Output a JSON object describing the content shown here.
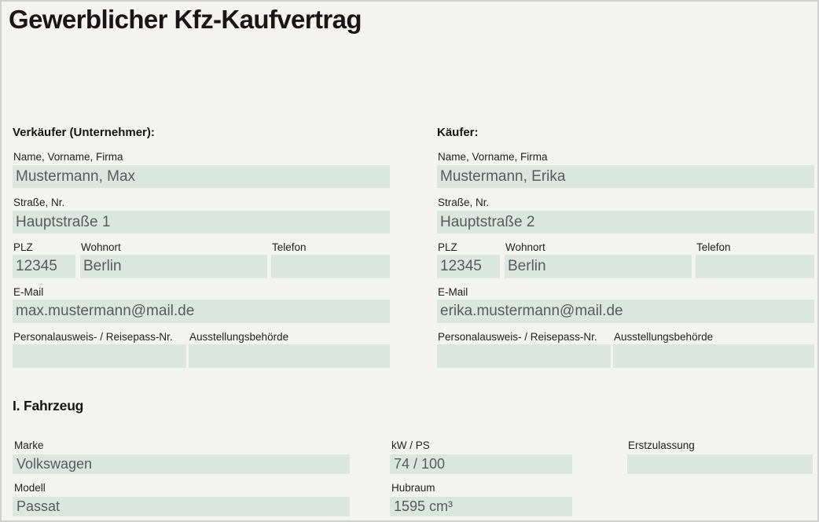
{
  "page": {
    "title": "Gewerblicher Kfz-Kaufvertrag",
    "colors": {
      "background": "#f3f3f1",
      "field_fill": "#dbe6e0",
      "label_text": "#222120",
      "value_text": "#595a5d",
      "border": "#cfd0cf"
    }
  },
  "parties": {
    "seller": {
      "heading": "Verkäufer (Unternehmer):",
      "name": {
        "label": "Name, Vorname, Firma",
        "value": "Mustermann, Max"
      },
      "street": {
        "label": "Straße, Nr.",
        "value": "Hauptstraße 1"
      },
      "plz": {
        "label": "PLZ",
        "value": "12345"
      },
      "city": {
        "label": "Wohnort",
        "value": "Berlin"
      },
      "phone": {
        "label": "Telefon",
        "value": ""
      },
      "email": {
        "label": "E-Mail",
        "value": "max.mustermann@mail.de"
      },
      "id_number": {
        "label": "Personalausweis- / Reisepass-Nr.",
        "value": ""
      },
      "authority": {
        "label": "Ausstellungsbehörde",
        "value": ""
      }
    },
    "buyer": {
      "heading": "Käufer:",
      "name": {
        "label": "Name, Vorname, Firma",
        "value": "Mustermann, Erika"
      },
      "street": {
        "label": "Straße, Nr.",
        "value": "Hauptstraße 2"
      },
      "plz": {
        "label": "PLZ",
        "value": "12345"
      },
      "city": {
        "label": "Wohnort",
        "value": "Berlin"
      },
      "phone": {
        "label": "Telefon",
        "value": ""
      },
      "email": {
        "label": "E-Mail",
        "value": "erika.mustermann@mail.de"
      },
      "id_number": {
        "label": "Personalausweis- / Reisepass-Nr.",
        "value": ""
      },
      "authority": {
        "label": "Ausstellungsbehörde",
        "value": ""
      }
    }
  },
  "vehicle": {
    "heading": "I. Fahrzeug",
    "marke": {
      "label": "Marke",
      "value": "Volkswagen"
    },
    "modell": {
      "label": "Modell",
      "value": "Passat"
    },
    "kw_ps": {
      "label": "kW / PS",
      "value": "74 / 100"
    },
    "hubraum": {
      "label": "Hubraum",
      "value": "1595 cm³"
    },
    "erstzulassung": {
      "label": "Erstzulassung",
      "value": ""
    }
  }
}
